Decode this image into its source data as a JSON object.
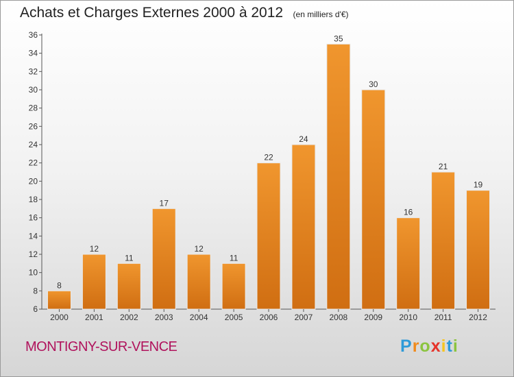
{
  "chart_data": {
    "type": "bar",
    "title": "Achats et Charges Externes 2000 à 2012",
    "subtitle": "(en milliers d'€)",
    "categories": [
      "2000",
      "2001",
      "2002",
      "2003",
      "2004",
      "2005",
      "2006",
      "2007",
      "2008",
      "2009",
      "2010",
      "2011",
      "2012"
    ],
    "values": [
      8,
      12,
      11,
      17,
      12,
      11,
      22,
      24,
      35,
      30,
      16,
      21,
      19
    ],
    "ylim": [
      6,
      36
    ],
    "yticks": [
      6,
      8,
      10,
      12,
      14,
      16,
      18,
      20,
      22,
      24,
      26,
      28,
      30,
      32,
      34,
      36
    ],
    "grid": false,
    "bar_color": "#f0962e",
    "bar_color_dark": "#d06e12"
  },
  "footer": {
    "city": "MONTIGNY-SUR-VENCE",
    "logo_letters": [
      "P",
      "r",
      "o",
      "x",
      "i",
      "t",
      "i"
    ],
    "logo_colors": [
      "#2e9ad8",
      "#f08a1c",
      "#8bc43f",
      "#e6332a",
      "#f7c51f",
      "#2e9ad8",
      "#8bc43f"
    ]
  }
}
